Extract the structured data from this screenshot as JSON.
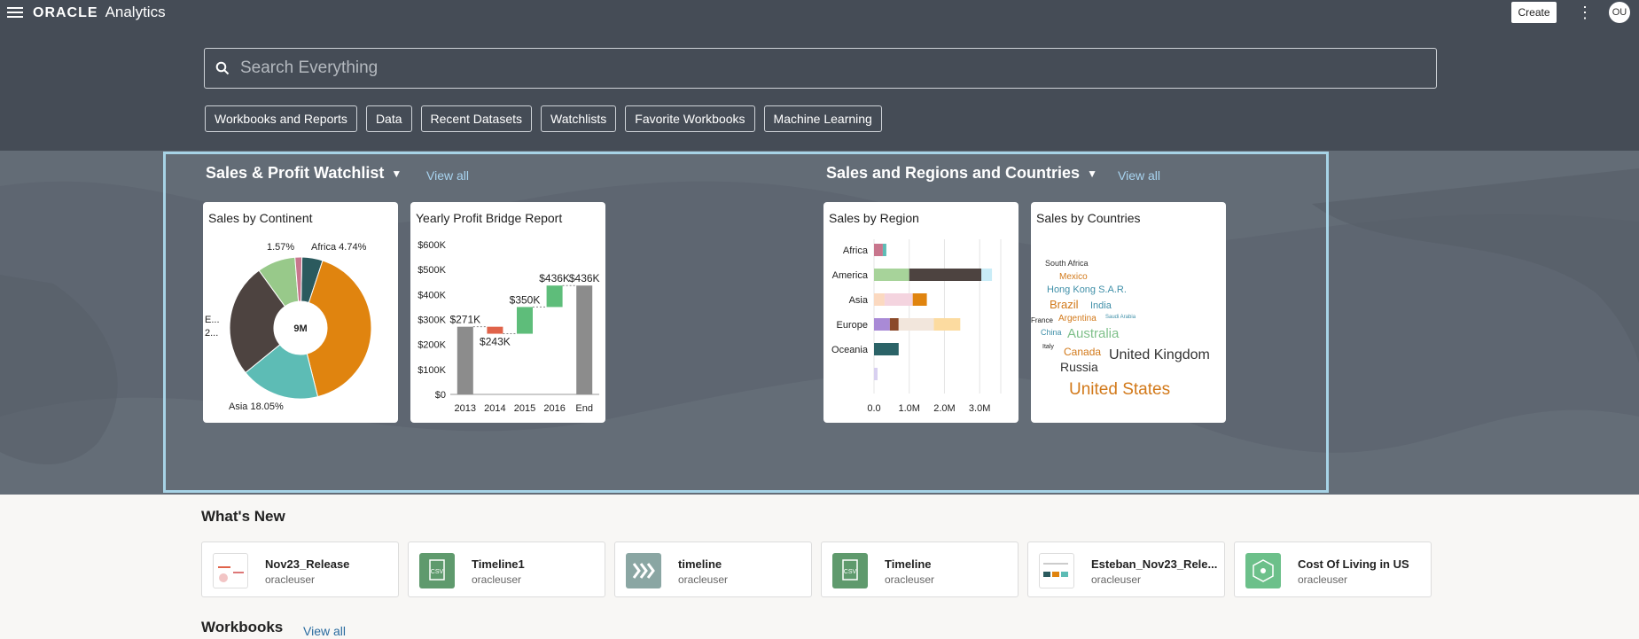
{
  "header": {
    "brand_logo": "ORACLE",
    "brand_product": "Analytics",
    "create_label": "Create",
    "more_glyph": "⋮",
    "avatar_initials": "OU",
    "search_placeholder": "Search Everything",
    "chips": [
      "Workbooks and Reports",
      "Data",
      "Recent Datasets",
      "Watchlists",
      "Favorite Workbooks",
      "Machine Learning"
    ]
  },
  "watchlists": [
    {
      "title": "Sales & Profit Watchlist",
      "view_all": "View all",
      "cards": [
        {
          "title": "Sales by Continent",
          "chart_data": {
            "type": "pie",
            "center_label": "9M",
            "labels": [
              "Africa 4.74%",
              "1.57%",
              "Asia 18.05%",
              "E...",
              "2..."
            ],
            "slices": [
              {
                "value": 4.74,
                "color": "#2b5a5e"
              },
              {
                "value": 41.0,
                "color": "#e0840f"
              },
              {
                "value": 18.05,
                "color": "#5dbcb5"
              },
              {
                "value": 25.9,
                "color": "#4d4340"
              },
              {
                "value": 8.7,
                "color": "#98c98a"
              },
              {
                "value": 1.57,
                "color": "#c8768d"
              }
            ]
          }
        },
        {
          "title": "Yearly Profit Bridge Report",
          "chart_data": {
            "type": "bar",
            "categories": [
              "2013",
              "2014",
              "2015",
              "2016",
              "End"
            ],
            "bars": [
              {
                "from": 0,
                "to": 271,
                "label": "$271K",
                "color": "#8c8c8c"
              },
              {
                "from": 271,
                "to": 243,
                "label": "$243K",
                "color": "#e0634a"
              },
              {
                "from": 243,
                "to": 350,
                "label": "$350K",
                "color": "#5ebd7a"
              },
              {
                "from": 350,
                "to": 436,
                "label": "$436K",
                "color": "#5ebd7a"
              },
              {
                "from": 0,
                "to": 436,
                "label": "$436K",
                "color": "#8c8c8c"
              }
            ],
            "yticks": [
              "$0",
              "$100K",
              "$200K",
              "$300K",
              "$400K",
              "$500K",
              "$600K"
            ],
            "ylim": [
              0,
              600
            ]
          }
        }
      ]
    },
    {
      "title": "Sales and Regions and Countries",
      "view_all": "View all",
      "cards": [
        {
          "title": "Sales by Region",
          "chart_data": {
            "type": "bar",
            "orientation": "horizontal-stacked",
            "categories": [
              "Africa",
              "America",
              "Asia",
              "Europe",
              "Oceania",
              ""
            ],
            "xticks": [
              "0.0",
              "1.0M",
              "2.0M",
              "3.0M"
            ],
            "xlim": [
              0,
              3.6
            ],
            "series": [
              {
                "segments": [
                  [
                    0.25,
                    "#c8768d"
                  ],
                  [
                    0.1,
                    "#5dbcb5"
                  ]
                ]
              },
              {
                "segments": [
                  [
                    1.0,
                    "#a7d39a"
                  ],
                  [
                    2.05,
                    "#4d4340"
                  ],
                  [
                    0.3,
                    "#c9ecf7"
                  ]
                ]
              },
              {
                "segments": [
                  [
                    0.3,
                    "#fbd9c0"
                  ],
                  [
                    0.8,
                    "#f4d4df"
                  ],
                  [
                    0.4,
                    "#e0840f"
                  ]
                ]
              },
              {
                "segments": [
                  [
                    0.45,
                    "#a98ad6"
                  ],
                  [
                    0.25,
                    "#8b4a2a"
                  ],
                  [
                    1.0,
                    "#f2e6dc"
                  ],
                  [
                    0.75,
                    "#fcdba0"
                  ]
                ]
              },
              {
                "segments": [
                  [
                    0.7,
                    "#2b6367"
                  ]
                ]
              },
              {
                "segments": [
                  [
                    0.1,
                    "#d8d0f0"
                  ]
                ]
              }
            ]
          }
        },
        {
          "title": "Sales by Countries",
          "words": [
            {
              "text": "South Africa",
              "size": 9,
              "color": "#333"
            },
            {
              "text": "Mexico",
              "size": 10,
              "color": "#d2791a"
            },
            {
              "text": "Hong Kong S.A.R.",
              "size": 11,
              "color": "#3f8fa8"
            },
            {
              "text": "Brazil",
              "size": 13,
              "color": "#d2791a"
            },
            {
              "text": "India",
              "size": 11,
              "color": "#3f8fa8"
            },
            {
              "text": "France",
              "size": 8,
              "color": "#222"
            },
            {
              "text": "Argentina",
              "size": 10,
              "color": "#d2791a"
            },
            {
              "text": "Saudi Arabia",
              "size": 6,
              "color": "#3f8fa8"
            },
            {
              "text": "China",
              "size": 9,
              "color": "#3f8fa8"
            },
            {
              "text": "Australia",
              "size": 15,
              "color": "#7fc08a"
            },
            {
              "text": "Italy",
              "size": 7,
              "color": "#222"
            },
            {
              "text": "Canada",
              "size": 12,
              "color": "#d2791a"
            },
            {
              "text": "United Kingdom",
              "size": 16,
              "color": "#333"
            },
            {
              "text": "Russia",
              "size": 14,
              "color": "#333"
            },
            {
              "text": "United States",
              "size": 19,
              "color": "#d2791a"
            }
          ]
        }
      ]
    }
  ],
  "whats_new": {
    "title": "What's New",
    "items": [
      {
        "title": "Nov23_Release",
        "owner": "oracleuser",
        "thumb": "workbook-thumbnail"
      },
      {
        "title": "Timeline1",
        "owner": "oracleuser",
        "thumb": "csv-icon"
      },
      {
        "title": "timeline",
        "owner": "oracleuser",
        "thumb": "dataflow-icon"
      },
      {
        "title": "Timeline",
        "owner": "oracleuser",
        "thumb": "csv-icon"
      },
      {
        "title": "Esteban_Nov23_Rele...",
        "owner": "oracleuser",
        "thumb": "workbook-thumbnail"
      },
      {
        "title": "Cost Of Living in US",
        "owner": "oracleuser",
        "thumb": "dataset-icon"
      }
    ]
  },
  "workbooks": {
    "title": "Workbooks",
    "view_all": "View all"
  }
}
